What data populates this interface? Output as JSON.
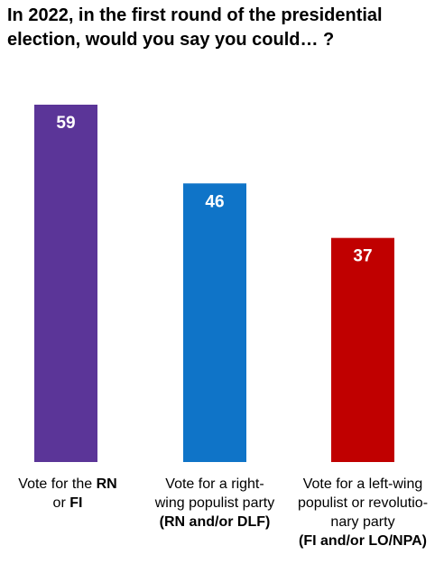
{
  "title": {
    "line1": "In 2022, in the first round of the presidential",
    "line2": "election, would you say you could… ?"
  },
  "chart_data": {
    "type": "bar",
    "title": "In 2022, in the first round of the presidential election, would you say you could… ?",
    "categories": [
      "Vote for the RN or FI",
      "Vote for a right-wing populist party (RN and/or DLF)",
      "Vote for a left-wing populist or revolutionary party (FI and/or LO/NPA)"
    ],
    "values": [
      59,
      46,
      37
    ],
    "value_labels": [
      "59",
      "46",
      "37"
    ],
    "colors": [
      "#5b3598",
      "#0f74c8",
      "#c00000"
    ],
    "ylim": [
      0,
      59
    ],
    "grid": false,
    "legend": "none"
  },
  "categories_display": [
    {
      "line1_pre": "Vote for the ",
      "line1_bold": "RN",
      "line2_pre": "or ",
      "line2_bold": "FI"
    },
    {
      "line1": "Vote for a right-",
      "line2": "wing populist party",
      "line3_bold": "(RN and/or DLF)"
    },
    {
      "line1": "Vote for a left-wing",
      "line2": "populist or revolutio-",
      "line3": "nary party",
      "line4_bold": "(FI and/or LO/NPA)"
    }
  ]
}
